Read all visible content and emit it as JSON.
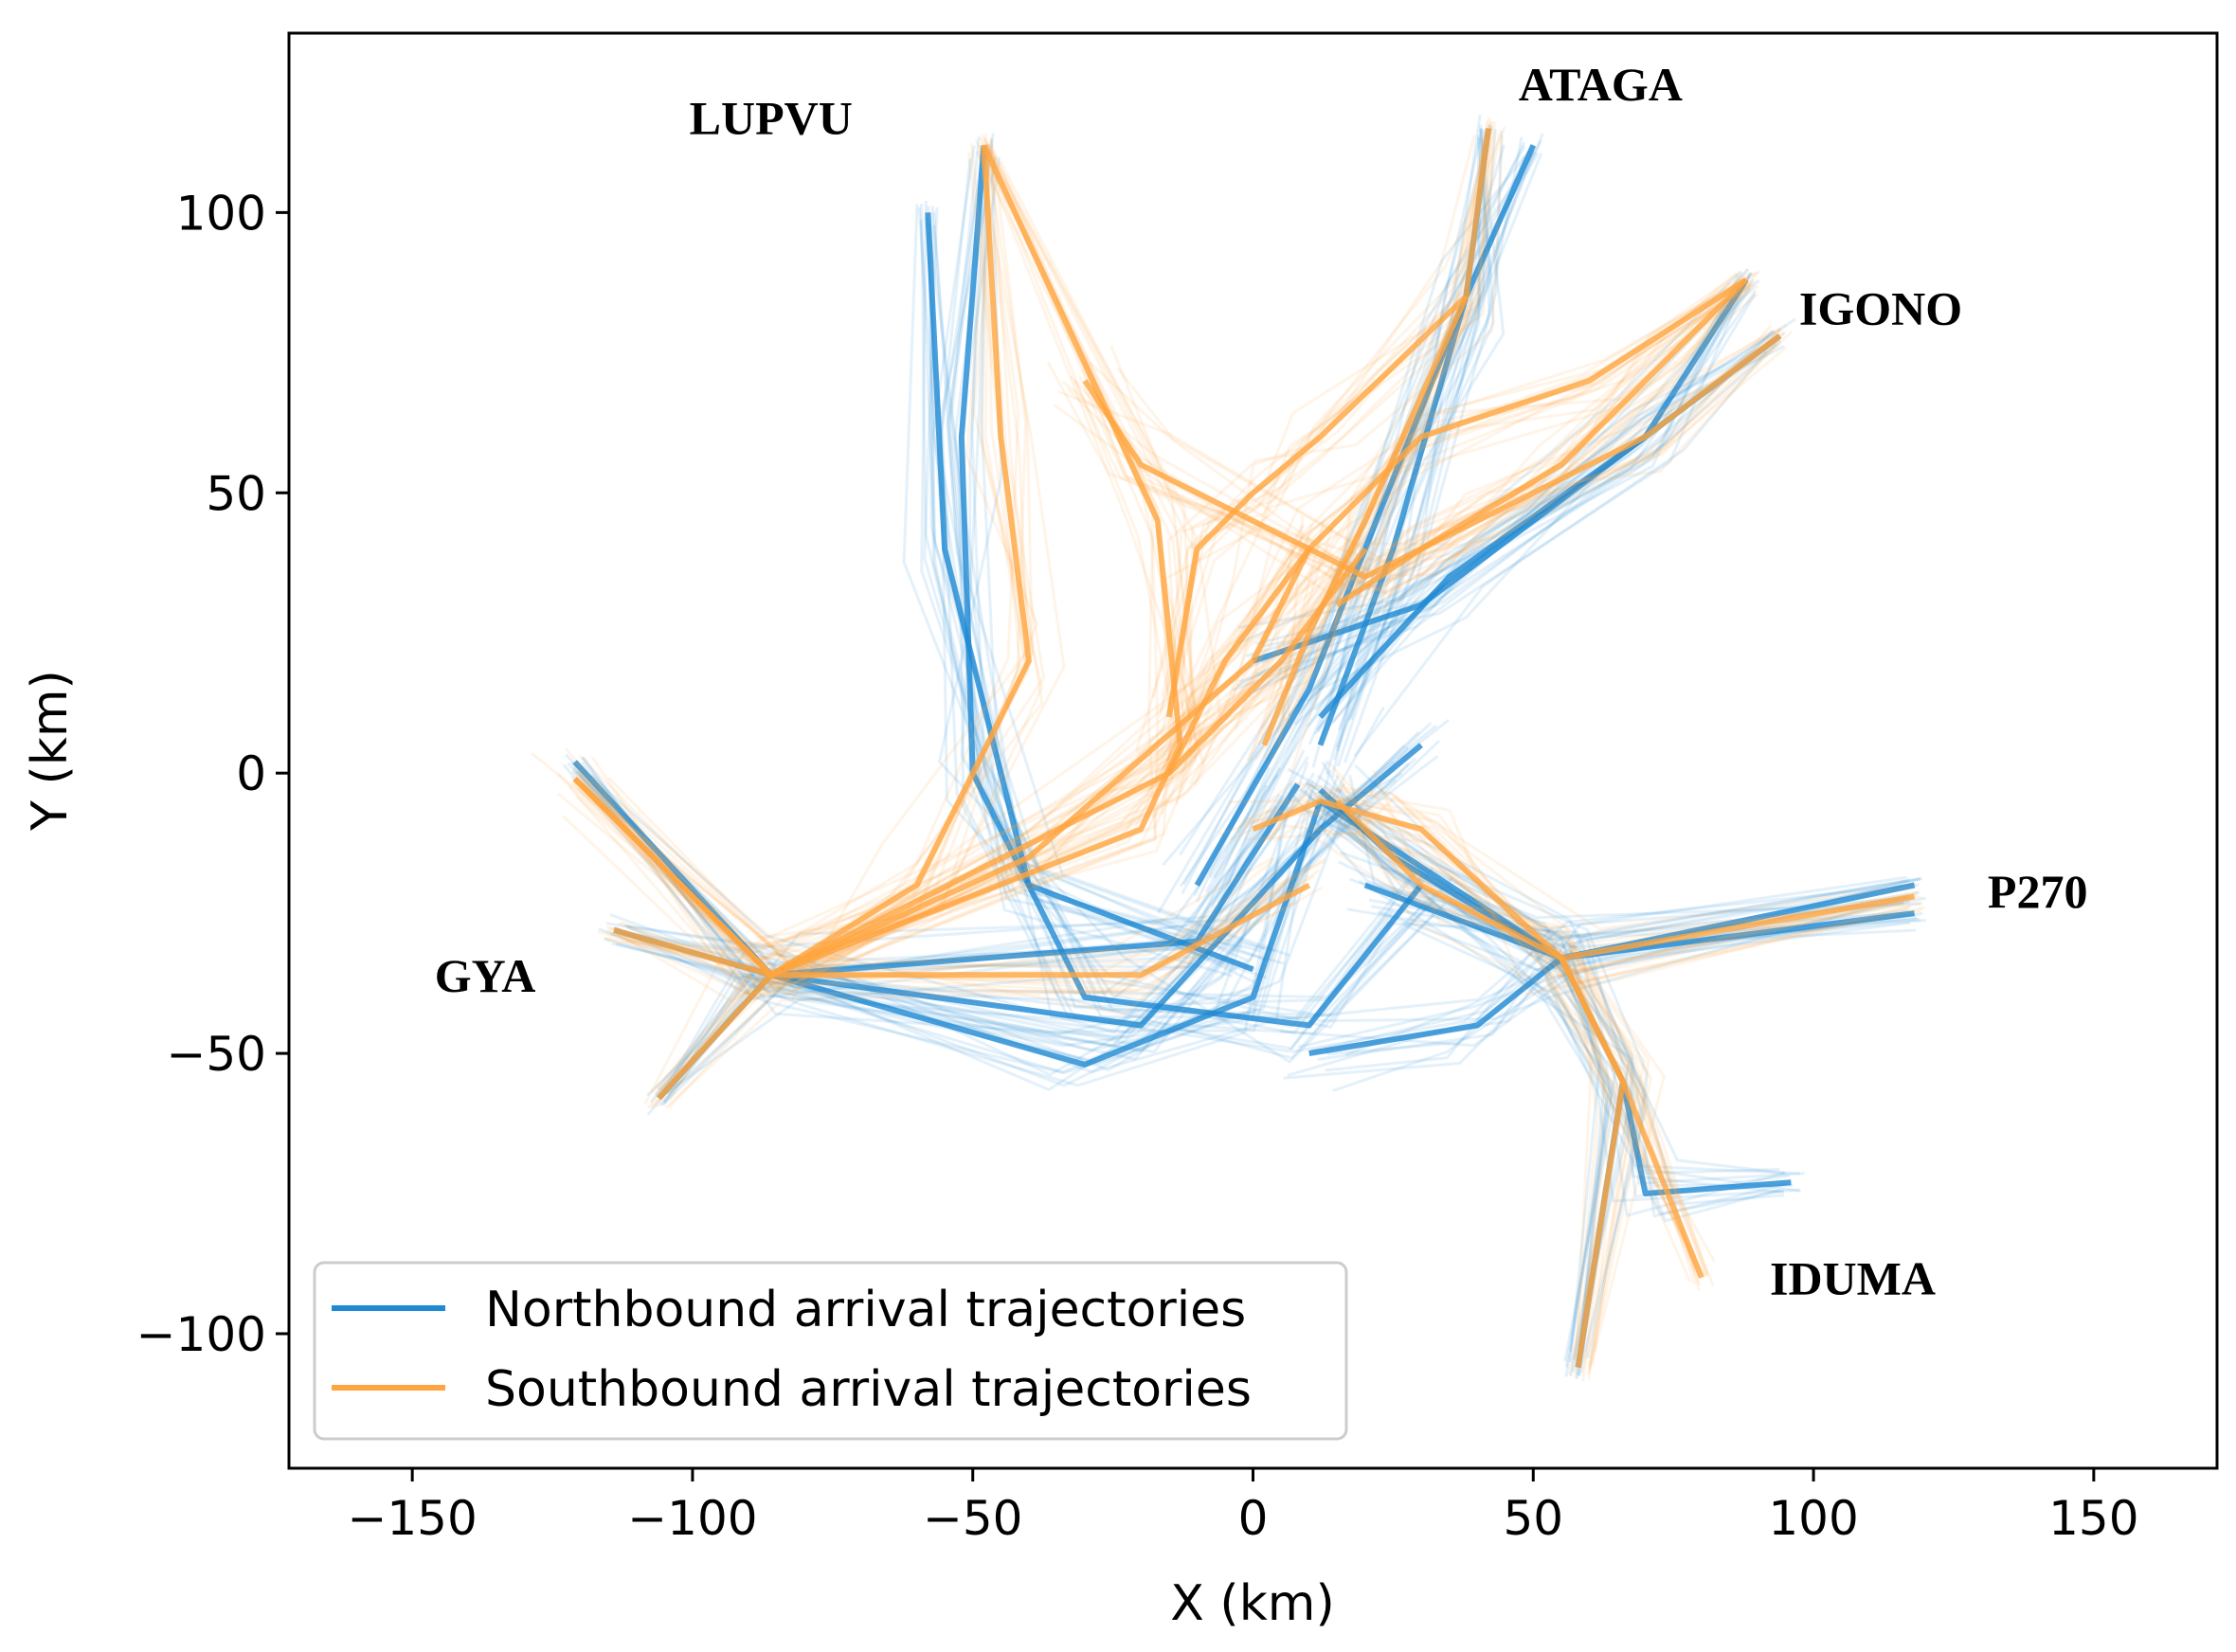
{
  "chart_data": {
    "type": "line",
    "xlabel": "X (km)",
    "ylabel": "Y (km)",
    "xlim": [
      -172,
      172
    ],
    "ylim": [
      -124,
      132
    ],
    "xticks": [
      -150,
      -100,
      -50,
      0,
      50,
      100,
      150
    ],
    "yticks": [
      -100,
      -50,
      0,
      50,
      100
    ],
    "xtick_labels": [
      "−150",
      "−100",
      "−50",
      "0",
      "50",
      "100",
      "150"
    ],
    "ytick_labels": [
      "−100",
      "−50",
      "0",
      "50",
      "100"
    ],
    "grid": false,
    "legend_position": "lower-left",
    "colors": {
      "northbound": "#1f8ad3",
      "southbound": "#ffa53f"
    },
    "series": [
      {
        "name": "Northbound arrival trajectories",
        "color": "#1f8ad3",
        "routes": [
          [
            [
              -121,
              2
            ],
            [
              -86,
              -36
            ],
            [
              -20,
              -45
            ],
            [
              12,
              -10
            ],
            [
              30,
              5
            ]
          ],
          [
            [
              -114,
              -28
            ],
            [
              -86,
              -36
            ],
            [
              -30,
              -52
            ],
            [
              0,
              -40
            ],
            [
              12,
              -5
            ]
          ],
          [
            [
              -106,
              -58
            ],
            [
              -86,
              -36
            ],
            [
              -10,
              -30
            ],
            [
              8,
              -2
            ]
          ],
          [
            [
              -48,
              112
            ],
            [
              -52,
              60
            ],
            [
              -50,
              0
            ],
            [
              -30,
              -40
            ],
            [
              10,
              -45
            ],
            [
              30,
              -20
            ]
          ],
          [
            [
              -58,
              100
            ],
            [
              -55,
              40
            ],
            [
              -40,
              -20
            ],
            [
              0,
              -35
            ]
          ],
          [
            [
              42,
              115
            ],
            [
              38,
              85
            ],
            [
              25,
              40
            ],
            [
              12,
              5
            ]
          ],
          [
            [
              50,
              112
            ],
            [
              38,
              85
            ],
            [
              10,
              15
            ],
            [
              -10,
              -20
            ]
          ],
          [
            [
              88,
              88
            ],
            [
              70,
              60
            ],
            [
              30,
              30
            ],
            [
              0,
              20
            ]
          ],
          [
            [
              94,
              78
            ],
            [
              70,
              60
            ],
            [
              35,
              35
            ],
            [
              12,
              10
            ]
          ],
          [
            [
              118,
              -25
            ],
            [
              55,
              -33
            ],
            [
              25,
              -15
            ],
            [
              12,
              -3
            ]
          ],
          [
            [
              118,
              -20
            ],
            [
              55,
              -33
            ],
            [
              40,
              -45
            ],
            [
              10,
              -50
            ]
          ],
          [
            [
              96,
              -73
            ],
            [
              70,
              -75
            ],
            [
              66,
              -55
            ],
            [
              55,
              -33
            ],
            [
              12,
              -5
            ]
          ],
          [
            [
              58,
              -106
            ],
            [
              66,
              -55
            ],
            [
              55,
              -33
            ],
            [
              20,
              -20
            ]
          ]
        ]
      },
      {
        "name": "Southbound arrival trajectories",
        "color": "#ffa53f",
        "routes": [
          [
            [
              -48,
              112
            ],
            [
              -17,
              45
            ],
            [
              -13,
              5
            ],
            [
              -20,
              -10
            ],
            [
              -86,
              -36
            ],
            [
              -121,
              -1
            ]
          ],
          [
            [
              -48,
              112
            ],
            [
              -45,
              60
            ],
            [
              -40,
              20
            ],
            [
              -60,
              -20
            ],
            [
              -86,
              -36
            ]
          ],
          [
            [
              42,
              115
            ],
            [
              38,
              85
            ],
            [
              12,
              60
            ],
            [
              0,
              50
            ],
            [
              -10,
              40
            ],
            [
              -15,
              10
            ]
          ],
          [
            [
              38,
              85
            ],
            [
              20,
              45
            ],
            [
              10,
              25
            ],
            [
              2,
              5
            ]
          ],
          [
            [
              88,
              88
            ],
            [
              75,
              75
            ],
            [
              55,
              55
            ],
            [
              30,
              40
            ],
            [
              15,
              30
            ]
          ],
          [
            [
              94,
              78
            ],
            [
              70,
              60
            ],
            [
              40,
              45
            ],
            [
              20,
              35
            ],
            [
              -20,
              55
            ],
            [
              -30,
              70
            ]
          ],
          [
            [
              88,
              88
            ],
            [
              60,
              70
            ],
            [
              30,
              60
            ],
            [
              10,
              40
            ],
            [
              -5,
              20
            ],
            [
              -15,
              0
            ]
          ],
          [
            [
              118,
              -22
            ],
            [
              55,
              -33
            ],
            [
              30,
              -10
            ],
            [
              12,
              -5
            ],
            [
              0,
              -10
            ]
          ],
          [
            [
              58,
              -106
            ],
            [
              66,
              -55
            ],
            [
              55,
              -33
            ],
            [
              30,
              -20
            ],
            [
              15,
              -5
            ]
          ],
          [
            [
              80,
              -90
            ],
            [
              66,
              -55
            ],
            [
              55,
              -33
            ]
          ],
          [
            [
              -121,
              -1
            ],
            [
              -86,
              -36
            ],
            [
              -15,
              0
            ],
            [
              5,
              20
            ],
            [
              20,
              40
            ]
          ],
          [
            [
              -114,
              -28
            ],
            [
              -86,
              -36
            ],
            [
              -40,
              -15
            ],
            [
              0,
              20
            ],
            [
              10,
              40
            ]
          ],
          [
            [
              -106,
              -58
            ],
            [
              -86,
              -36
            ],
            [
              -20,
              -36
            ],
            [
              10,
              -20
            ]
          ]
        ]
      }
    ],
    "annotations": [
      {
        "text": "LUPVU",
        "x": -86,
        "y": 114
      },
      {
        "text": "ATAGA",
        "x": 62,
        "y": 120
      },
      {
        "text": "IGONO",
        "x": 112,
        "y": 80
      },
      {
        "text": "P270",
        "x": 140,
        "y": -24
      },
      {
        "text": "GYA",
        "x": -137,
        "y": -39
      },
      {
        "text": "IDUMA",
        "x": 107,
        "y": -93
      }
    ]
  }
}
